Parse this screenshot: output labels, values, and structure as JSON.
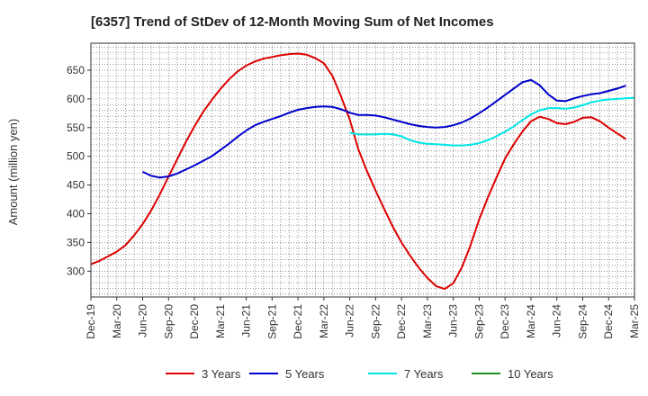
{
  "chart_data": {
    "type": "line",
    "title": "[6357]  Trend of StDev of 12-Month Moving Sum of Net Incomes",
    "xlabel": "",
    "ylabel": "Amount (million yen)",
    "ylim": [
      255,
      697
    ],
    "yticks": [
      300,
      350,
      400,
      450,
      500,
      550,
      600,
      650
    ],
    "x_ticks": [
      "Dec-19",
      "Mar-20",
      "Jun-20",
      "Sep-20",
      "Dec-20",
      "Mar-21",
      "Jun-21",
      "Sep-21",
      "Dec-21",
      "Mar-22",
      "Jun-22",
      "Sep-22",
      "Dec-22",
      "Mar-23",
      "Jun-23",
      "Sep-23",
      "Dec-23",
      "Mar-24",
      "Jun-24",
      "Sep-24",
      "Dec-24",
      "Mar-25"
    ],
    "grid": true,
    "legend_position": "bottom",
    "series": [
      {
        "name": "3 Years",
        "color": "#dd0000",
        "start_index": 0,
        "values": [
          312,
          318,
          326,
          334,
          345,
          362,
          382,
          406,
          434,
          465,
          495,
          525,
          552,
          577,
          598,
          617,
          634,
          648,
          658,
          665,
          670,
          673,
          676,
          678,
          679,
          677,
          671,
          662,
          640,
          604,
          564,
          512,
          474,
          440,
          408,
          377,
          350,
          327,
          306,
          288,
          274,
          269,
          279,
          307,
          345,
          390,
          428,
          463,
          496,
          521,
          543,
          561,
          569,
          565,
          558,
          556,
          560,
          567,
          568,
          561,
          550,
          540,
          530
        ]
      },
      {
        "name": "5 Years",
        "color": "#0000cc",
        "start_index": 6,
        "values": [
          473,
          466,
          463,
          465,
          470,
          477,
          484,
          492,
          500,
          511,
          522,
          534,
          545,
          554,
          560,
          565,
          570,
          576,
          581,
          584,
          586,
          587,
          586,
          582,
          576,
          572,
          572,
          571,
          568,
          564,
          560,
          556,
          553,
          551,
          550,
          551,
          554,
          559,
          566,
          575,
          585,
          596,
          607,
          618,
          629,
          633,
          624,
          608,
          597,
          596,
          601,
          605,
          608,
          610,
          614,
          618,
          623
        ]
      },
      {
        "name": "7 Years",
        "color": "#00e5e5",
        "start_index": 30,
        "values": [
          541,
          538,
          538,
          538,
          539,
          538,
          535,
          528,
          524,
          522,
          521,
          520,
          519,
          519,
          520,
          523,
          528,
          535,
          543,
          552,
          563,
          573,
          580,
          584,
          584,
          583,
          585,
          589,
          594,
          597,
          599,
          600,
          601,
          602
        ]
      },
      {
        "name": "10 Years",
        "color": "#228b22",
        "start_index": 0,
        "values": []
      }
    ]
  }
}
